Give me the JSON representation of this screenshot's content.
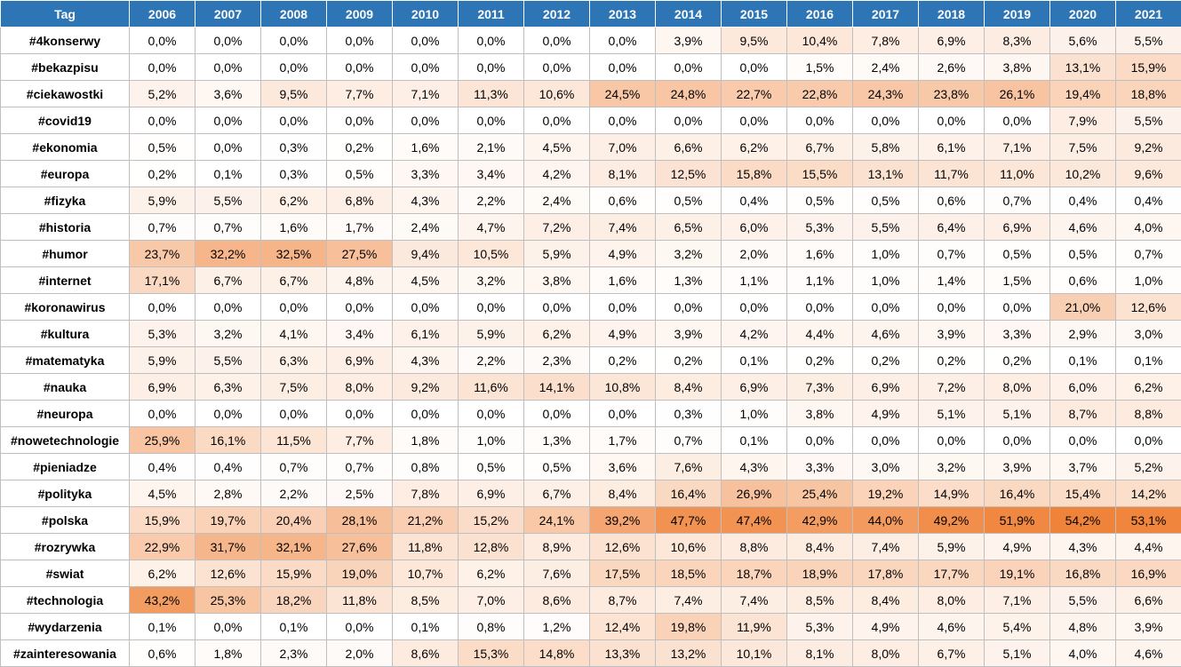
{
  "table": {
    "header_tag": "Tag",
    "years": [
      "2006",
      "2007",
      "2008",
      "2009",
      "2010",
      "2011",
      "2012",
      "2013",
      "2014",
      "2015",
      "2016",
      "2017",
      "2018",
      "2019",
      "2020",
      "2021"
    ],
    "heat_color_max": "#f0833a",
    "heat_color_min": "#ffffff",
    "heat_max_value": 54.2,
    "rows": [
      {
        "tag": "#4konserwy",
        "values": [
          "0,0%",
          "0,0%",
          "0,0%",
          "0,0%",
          "0,0%",
          "0,0%",
          "0,0%",
          "0,0%",
          "3,9%",
          "9,5%",
          "10,4%",
          "7,8%",
          "6,9%",
          "8,3%",
          "5,6%",
          "5,5%"
        ]
      },
      {
        "tag": "#bekazpisu",
        "values": [
          "0,0%",
          "0,0%",
          "0,0%",
          "0,0%",
          "0,0%",
          "0,0%",
          "0,0%",
          "0,0%",
          "0,0%",
          "0,0%",
          "1,5%",
          "2,4%",
          "2,6%",
          "3,8%",
          "13,1%",
          "15,9%"
        ]
      },
      {
        "tag": "#ciekawostki",
        "values": [
          "5,2%",
          "3,6%",
          "9,5%",
          "7,7%",
          "7,1%",
          "11,3%",
          "10,6%",
          "24,5%",
          "24,8%",
          "22,7%",
          "22,8%",
          "24,3%",
          "23,8%",
          "26,1%",
          "19,4%",
          "18,8%"
        ]
      },
      {
        "tag": "#covid19",
        "values": [
          "0,0%",
          "0,0%",
          "0,0%",
          "0,0%",
          "0,0%",
          "0,0%",
          "0,0%",
          "0,0%",
          "0,0%",
          "0,0%",
          "0,0%",
          "0,0%",
          "0,0%",
          "0,0%",
          "7,9%",
          "5,5%"
        ]
      },
      {
        "tag": "#ekonomia",
        "values": [
          "0,5%",
          "0,0%",
          "0,3%",
          "0,2%",
          "1,6%",
          "2,1%",
          "4,5%",
          "7,0%",
          "6,6%",
          "6,2%",
          "6,7%",
          "5,8%",
          "6,1%",
          "7,1%",
          "7,5%",
          "9,2%"
        ]
      },
      {
        "tag": "#europa",
        "values": [
          "0,2%",
          "0,1%",
          "0,3%",
          "0,5%",
          "3,3%",
          "3,4%",
          "4,2%",
          "8,1%",
          "12,5%",
          "15,8%",
          "15,5%",
          "13,1%",
          "11,7%",
          "11,0%",
          "10,2%",
          "9,6%"
        ]
      },
      {
        "tag": "#fizyka",
        "values": [
          "5,9%",
          "5,5%",
          "6,2%",
          "6,8%",
          "4,3%",
          "2,2%",
          "2,4%",
          "0,6%",
          "0,5%",
          "0,4%",
          "0,5%",
          "0,5%",
          "0,6%",
          "0,7%",
          "0,4%",
          "0,4%"
        ]
      },
      {
        "tag": "#historia",
        "values": [
          "0,7%",
          "0,7%",
          "1,6%",
          "1,7%",
          "2,4%",
          "4,7%",
          "7,2%",
          "7,4%",
          "6,5%",
          "6,0%",
          "5,3%",
          "5,5%",
          "6,4%",
          "6,9%",
          "4,6%",
          "4,0%"
        ]
      },
      {
        "tag": "#humor",
        "values": [
          "23,7%",
          "32,2%",
          "32,5%",
          "27,5%",
          "9,4%",
          "10,5%",
          "5,9%",
          "4,9%",
          "3,2%",
          "2,0%",
          "1,6%",
          "1,0%",
          "0,7%",
          "0,5%",
          "0,5%",
          "0,7%"
        ]
      },
      {
        "tag": "#internet",
        "values": [
          "17,1%",
          "6,7%",
          "6,7%",
          "4,8%",
          "4,5%",
          "3,2%",
          "3,8%",
          "1,6%",
          "1,3%",
          "1,1%",
          "1,1%",
          "1,0%",
          "1,4%",
          "1,5%",
          "0,6%",
          "1,0%"
        ]
      },
      {
        "tag": "#koronawirus",
        "values": [
          "0,0%",
          "0,0%",
          "0,0%",
          "0,0%",
          "0,0%",
          "0,0%",
          "0,0%",
          "0,0%",
          "0,0%",
          "0,0%",
          "0,0%",
          "0,0%",
          "0,0%",
          "0,0%",
          "21,0%",
          "12,6%"
        ]
      },
      {
        "tag": "#kultura",
        "values": [
          "5,3%",
          "3,2%",
          "4,1%",
          "3,4%",
          "6,1%",
          "5,9%",
          "6,2%",
          "4,9%",
          "3,9%",
          "4,2%",
          "4,4%",
          "4,6%",
          "3,9%",
          "3,3%",
          "2,9%",
          "3,0%"
        ]
      },
      {
        "tag": "#matematyka",
        "values": [
          "5,9%",
          "5,5%",
          "6,3%",
          "6,9%",
          "4,3%",
          "2,2%",
          "2,3%",
          "0,2%",
          "0,2%",
          "0,1%",
          "0,2%",
          "0,2%",
          "0,2%",
          "0,2%",
          "0,1%",
          "0,1%"
        ]
      },
      {
        "tag": "#nauka",
        "values": [
          "6,9%",
          "6,3%",
          "7,5%",
          "8,0%",
          "9,2%",
          "11,6%",
          "14,1%",
          "10,8%",
          "8,4%",
          "6,9%",
          "7,3%",
          "6,9%",
          "7,2%",
          "8,0%",
          "6,0%",
          "6,2%"
        ]
      },
      {
        "tag": "#neuropa",
        "values": [
          "0,0%",
          "0,0%",
          "0,0%",
          "0,0%",
          "0,0%",
          "0,0%",
          "0,0%",
          "0,0%",
          "0,3%",
          "1,0%",
          "3,8%",
          "4,9%",
          "5,1%",
          "5,1%",
          "8,7%",
          "8,8%"
        ]
      },
      {
        "tag": "#nowetechnologie",
        "values": [
          "25,9%",
          "16,1%",
          "11,5%",
          "7,7%",
          "1,8%",
          "1,0%",
          "1,3%",
          "1,7%",
          "0,7%",
          "0,1%",
          "0,0%",
          "0,0%",
          "0,0%",
          "0,0%",
          "0,0%",
          "0,0%"
        ]
      },
      {
        "tag": "#pieniadze",
        "values": [
          "0,4%",
          "0,4%",
          "0,7%",
          "0,7%",
          "0,8%",
          "0,5%",
          "0,5%",
          "3,6%",
          "7,6%",
          "4,3%",
          "3,3%",
          "3,0%",
          "3,2%",
          "3,9%",
          "3,7%",
          "5,2%"
        ]
      },
      {
        "tag": "#polityka",
        "values": [
          "4,5%",
          "2,8%",
          "2,2%",
          "2,5%",
          "7,8%",
          "6,9%",
          "6,7%",
          "8,4%",
          "16,4%",
          "26,9%",
          "25,4%",
          "19,2%",
          "14,9%",
          "16,4%",
          "15,4%",
          "14,2%"
        ]
      },
      {
        "tag": "#polska",
        "values": [
          "15,9%",
          "19,7%",
          "20,4%",
          "28,1%",
          "21,2%",
          "15,2%",
          "24,1%",
          "39,2%",
          "47,7%",
          "47,4%",
          "42,9%",
          "44,0%",
          "49,2%",
          "51,9%",
          "54,2%",
          "53,1%"
        ]
      },
      {
        "tag": "#rozrywka",
        "values": [
          "22,9%",
          "31,7%",
          "32,1%",
          "27,6%",
          "11,8%",
          "12,8%",
          "8,9%",
          "12,6%",
          "10,6%",
          "8,8%",
          "8,4%",
          "7,4%",
          "5,9%",
          "4,9%",
          "4,3%",
          "4,4%"
        ]
      },
      {
        "tag": "#swiat",
        "values": [
          "6,2%",
          "12,6%",
          "15,9%",
          "19,0%",
          "10,7%",
          "6,2%",
          "7,6%",
          "17,5%",
          "18,5%",
          "18,7%",
          "18,9%",
          "17,8%",
          "17,7%",
          "19,1%",
          "16,8%",
          "16,9%"
        ]
      },
      {
        "tag": "#technologia",
        "values": [
          "43,2%",
          "25,3%",
          "18,2%",
          "11,8%",
          "8,5%",
          "7,0%",
          "8,6%",
          "8,7%",
          "7,4%",
          "7,4%",
          "8,5%",
          "8,4%",
          "8,0%",
          "7,1%",
          "5,5%",
          "6,6%"
        ]
      },
      {
        "tag": "#wydarzenia",
        "values": [
          "0,1%",
          "0,0%",
          "0,1%",
          "0,0%",
          "0,1%",
          "0,8%",
          "1,2%",
          "12,4%",
          "19,8%",
          "11,9%",
          "5,3%",
          "4,9%",
          "4,6%",
          "5,4%",
          "4,8%",
          "3,9%"
        ]
      },
      {
        "tag": "#zainteresowania",
        "values": [
          "0,6%",
          "1,8%",
          "2,3%",
          "2,0%",
          "8,6%",
          "15,3%",
          "14,8%",
          "13,3%",
          "13,2%",
          "10,1%",
          "8,1%",
          "8,0%",
          "6,7%",
          "5,1%",
          "4,0%",
          "4,6%"
        ]
      }
    ]
  }
}
